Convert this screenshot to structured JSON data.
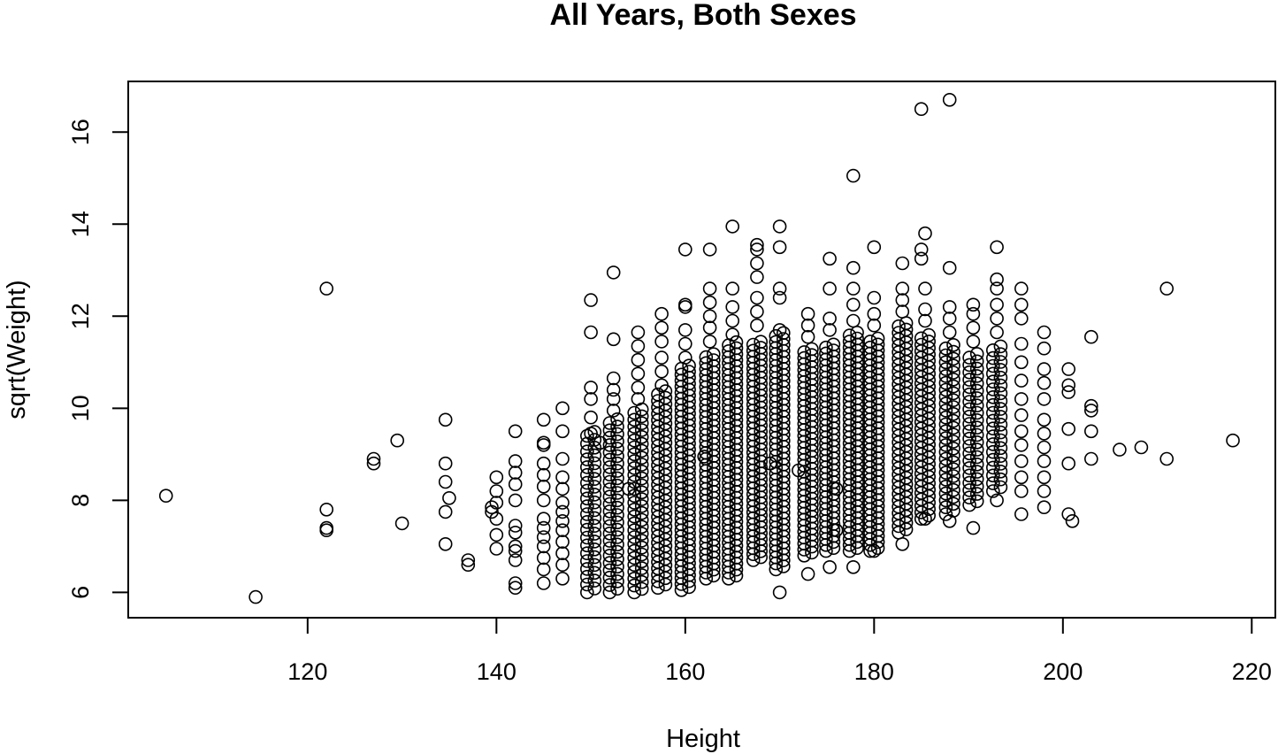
{
  "chart_data": {
    "type": "scatter",
    "title": "All Years, Both Sexes",
    "xlabel": "Height",
    "ylabel": "sqrt(Weight)",
    "xlim": [
      101,
      222.5
    ],
    "ylim": [
      5.45,
      17.1
    ],
    "xticks": [
      120,
      140,
      160,
      180,
      200,
      220
    ],
    "yticks": [
      6,
      8,
      10,
      12,
      14,
      16
    ],
    "grid": false,
    "marker": "open-circle",
    "color": "#000000",
    "points": [
      [
        105.0,
        8.1
      ],
      [
        114.5,
        5.9
      ],
      [
        122.0,
        12.6
      ],
      [
        122.0,
        7.8
      ],
      [
        122.0,
        7.4
      ],
      [
        122.0,
        7.35
      ],
      [
        127.0,
        8.9
      ],
      [
        127.0,
        8.8
      ],
      [
        129.5,
        9.3
      ],
      [
        130.0,
        7.5
      ],
      [
        134.6,
        9.75
      ],
      [
        134.6,
        8.8
      ],
      [
        134.6,
        8.4
      ],
      [
        134.6,
        7.75
      ],
      [
        134.6,
        7.05
      ],
      [
        135.0,
        8.05
      ],
      [
        137.0,
        6.7
      ],
      [
        137.0,
        6.6
      ],
      [
        139.5,
        7.85
      ],
      [
        139.5,
        7.75
      ],
      [
        140.0,
        8.5
      ],
      [
        140.0,
        8.2
      ],
      [
        140.0,
        7.95
      ],
      [
        140.0,
        7.6
      ],
      [
        140.0,
        7.25
      ],
      [
        140.0,
        6.95
      ],
      [
        142.0,
        9.5
      ],
      [
        142.0,
        8.85
      ],
      [
        142.0,
        8.6
      ],
      [
        142.0,
        8.35
      ],
      [
        142.0,
        8.0
      ],
      [
        142.0,
        7.45
      ],
      [
        142.0,
        7.3
      ],
      [
        142.0,
        7.0
      ],
      [
        142.0,
        6.9
      ],
      [
        142.0,
        6.7
      ],
      [
        142.0,
        6.2
      ],
      [
        142.0,
        6.1
      ],
      [
        145.0,
        9.75
      ],
      [
        145.0,
        9.25
      ],
      [
        145.0,
        9.2
      ],
      [
        145.0,
        8.8
      ],
      [
        145.0,
        8.55
      ],
      [
        145.0,
        8.3
      ],
      [
        145.0,
        8.0
      ],
      [
        145.0,
        7.6
      ],
      [
        145.0,
        7.4
      ],
      [
        145.0,
        7.2
      ],
      [
        145.0,
        7.0
      ],
      [
        145.0,
        6.75
      ],
      [
        145.0,
        6.5
      ],
      [
        145.0,
        6.2
      ],
      [
        147.0,
        10.0
      ],
      [
        147.0,
        9.5
      ],
      [
        147.0,
        8.9
      ],
      [
        147.0,
        8.5
      ],
      [
        147.0,
        8.25
      ],
      [
        147.0,
        7.95
      ],
      [
        147.0,
        7.75
      ],
      [
        147.0,
        7.55
      ],
      [
        147.0,
        7.35
      ],
      [
        147.0,
        7.1
      ],
      [
        147.0,
        6.85
      ],
      [
        147.0,
        6.6
      ],
      [
        147.0,
        6.3
      ],
      [
        150.0,
        12.35
      ],
      [
        150.0,
        11.65
      ],
      [
        150.0,
        10.45
      ],
      [
        150.0,
        10.2
      ],
      [
        150.0,
        9.8
      ],
      [
        150.0,
        9.45
      ],
      [
        151.0,
        9.25
      ],
      [
        154.0,
        8.25
      ],
      [
        152.4,
        12.95
      ],
      [
        152.4,
        11.5
      ],
      [
        152.4,
        10.65
      ],
      [
        152.4,
        10.4
      ],
      [
        152.4,
        10.2
      ],
      [
        152.4,
        9.95
      ],
      [
        155.0,
        11.65
      ],
      [
        155.0,
        11.35
      ],
      [
        155.0,
        11.05
      ],
      [
        155.0,
        10.75
      ],
      [
        155.0,
        10.45
      ],
      [
        155.0,
        10.2
      ],
      [
        157.5,
        12.05
      ],
      [
        157.5,
        11.75
      ],
      [
        157.5,
        11.45
      ],
      [
        157.5,
        11.1
      ],
      [
        157.5,
        10.8
      ],
      [
        157.5,
        10.5
      ],
      [
        160.0,
        13.45
      ],
      [
        160.0,
        12.25
      ],
      [
        160.0,
        12.2
      ],
      [
        160.0,
        11.7
      ],
      [
        160.0,
        11.4
      ],
      [
        160.0,
        11.1
      ],
      [
        162.0,
        8.95
      ],
      [
        162.6,
        13.45
      ],
      [
        162.6,
        12.6
      ],
      [
        162.6,
        12.3
      ],
      [
        162.6,
        12.0
      ],
      [
        162.6,
        11.75
      ],
      [
        162.6,
        11.45
      ],
      [
        165.0,
        13.95
      ],
      [
        165.0,
        12.6
      ],
      [
        165.0,
        12.2
      ],
      [
        165.0,
        11.9
      ],
      [
        165.0,
        11.6
      ],
      [
        167.6,
        13.55
      ],
      [
        167.6,
        13.45
      ],
      [
        167.6,
        13.15
      ],
      [
        167.6,
        12.85
      ],
      [
        167.6,
        12.4
      ],
      [
        167.6,
        12.1
      ],
      [
        167.6,
        11.8
      ],
      [
        170.0,
        13.95
      ],
      [
        170.0,
        13.5
      ],
      [
        170.0,
        12.6
      ],
      [
        170.0,
        12.4
      ],
      [
        170.0,
        11.7
      ],
      [
        170.0,
        6.0
      ],
      [
        169.0,
        8.8
      ],
      [
        172.0,
        8.65
      ],
      [
        173.0,
        12.05
      ],
      [
        173.0,
        11.8
      ],
      [
        173.0,
        11.55
      ],
      [
        173.0,
        6.4
      ],
      [
        175.3,
        13.25
      ],
      [
        175.3,
        12.6
      ],
      [
        175.3,
        11.95
      ],
      [
        175.3,
        11.7
      ],
      [
        175.3,
        6.55
      ],
      [
        176.0,
        8.25
      ],
      [
        176.0,
        7.35
      ],
      [
        177.8,
        15.05
      ],
      [
        177.8,
        13.05
      ],
      [
        177.8,
        12.6
      ],
      [
        177.8,
        12.25
      ],
      [
        177.8,
        11.9
      ],
      [
        177.8,
        6.55
      ],
      [
        180.0,
        13.5
      ],
      [
        180.0,
        12.4
      ],
      [
        180.0,
        12.05
      ],
      [
        180.0,
        11.8
      ],
      [
        180.0,
        6.9
      ],
      [
        183.0,
        13.15
      ],
      [
        183.0,
        12.6
      ],
      [
        183.0,
        12.35
      ],
      [
        183.0,
        12.1
      ],
      [
        183.0,
        7.05
      ],
      [
        185.0,
        16.5
      ],
      [
        185.0,
        13.45
      ],
      [
        185.0,
        13.25
      ],
      [
        185.4,
        13.8
      ],
      [
        185.4,
        12.6
      ],
      [
        185.4,
        12.15
      ],
      [
        185.4,
        11.9
      ],
      [
        185.4,
        7.6
      ],
      [
        188.0,
        16.7
      ],
      [
        188.0,
        13.05
      ],
      [
        188.0,
        12.2
      ],
      [
        188.0,
        11.95
      ],
      [
        188.0,
        11.65
      ],
      [
        188.0,
        7.55
      ],
      [
        190.5,
        12.25
      ],
      [
        190.5,
        12.05
      ],
      [
        190.5,
        11.75
      ],
      [
        190.5,
        11.45
      ],
      [
        190.5,
        7.4
      ],
      [
        193.0,
        13.5
      ],
      [
        193.0,
        12.8
      ],
      [
        193.0,
        12.6
      ],
      [
        193.0,
        12.25
      ],
      [
        193.0,
        11.95
      ],
      [
        193.0,
        11.65
      ],
      [
        193.0,
        8.0
      ],
      [
        195.6,
        12.6
      ],
      [
        195.6,
        12.25
      ],
      [
        195.6,
        11.95
      ],
      [
        195.6,
        11.4
      ],
      [
        195.6,
        11.0
      ],
      [
        195.6,
        10.6
      ],
      [
        195.6,
        10.2
      ],
      [
        195.6,
        9.85
      ],
      [
        195.6,
        9.5
      ],
      [
        195.6,
        9.2
      ],
      [
        195.6,
        8.85
      ],
      [
        195.6,
        8.5
      ],
      [
        195.6,
        8.2
      ],
      [
        195.6,
        7.7
      ],
      [
        198.0,
        11.65
      ],
      [
        198.0,
        11.3
      ],
      [
        198.0,
        10.85
      ],
      [
        198.0,
        10.55
      ],
      [
        198.0,
        10.2
      ],
      [
        198.0,
        9.75
      ],
      [
        198.0,
        9.45
      ],
      [
        198.0,
        9.15
      ],
      [
        198.0,
        8.85
      ],
      [
        198.0,
        8.5
      ],
      [
        198.0,
        8.2
      ],
      [
        198.0,
        7.85
      ],
      [
        200.6,
        10.85
      ],
      [
        200.6,
        10.5
      ],
      [
        200.6,
        10.35
      ],
      [
        200.6,
        9.55
      ],
      [
        200.6,
        8.8
      ],
      [
        200.6,
        7.7
      ],
      [
        201.0,
        7.55
      ],
      [
        203.0,
        11.55
      ],
      [
        203.0,
        10.05
      ],
      [
        203.0,
        9.95
      ],
      [
        203.0,
        9.5
      ],
      [
        203.0,
        8.9
      ],
      [
        206.0,
        9.1
      ],
      [
        208.3,
        9.15
      ],
      [
        211.0,
        12.6
      ],
      [
        211.0,
        8.9
      ],
      [
        218.0,
        9.3
      ]
    ],
    "columns": [
      {
        "x": 150.0,
        "ymin": 6.0,
        "ymax": 9.4,
        "step": 0.17
      },
      {
        "x": 152.4,
        "ymin": 6.0,
        "ymax": 9.8,
        "step": 0.16
      },
      {
        "x": 155.0,
        "ymin": 6.0,
        "ymax": 10.0,
        "step": 0.15
      },
      {
        "x": 157.5,
        "ymin": 6.1,
        "ymax": 10.3,
        "step": 0.14
      },
      {
        "x": 160.0,
        "ymin": 6.05,
        "ymax": 10.9,
        "step": 0.13
      },
      {
        "x": 162.6,
        "ymin": 6.3,
        "ymax": 11.2,
        "step": 0.13
      },
      {
        "x": 165.0,
        "ymin": 6.3,
        "ymax": 11.4,
        "step": 0.13
      },
      {
        "x": 167.6,
        "ymin": 6.7,
        "ymax": 11.5,
        "step": 0.13
      },
      {
        "x": 170.0,
        "ymin": 6.5,
        "ymax": 11.6,
        "step": 0.13
      },
      {
        "x": 173.0,
        "ymin": 6.8,
        "ymax": 11.3,
        "step": 0.13
      },
      {
        "x": 175.3,
        "ymin": 6.9,
        "ymax": 11.4,
        "step": 0.13
      },
      {
        "x": 177.8,
        "ymin": 6.9,
        "ymax": 11.6,
        "step": 0.13
      },
      {
        "x": 180.0,
        "ymin": 6.9,
        "ymax": 11.5,
        "step": 0.13
      },
      {
        "x": 183.0,
        "ymin": 7.3,
        "ymax": 11.8,
        "step": 0.14
      },
      {
        "x": 185.4,
        "ymin": 7.6,
        "ymax": 11.6,
        "step": 0.14
      },
      {
        "x": 188.0,
        "ymin": 7.7,
        "ymax": 11.3,
        "step": 0.15
      },
      {
        "x": 190.5,
        "ymin": 7.9,
        "ymax": 11.1,
        "step": 0.16
      },
      {
        "x": 193.0,
        "ymin": 8.2,
        "ymax": 11.3,
        "step": 0.17
      }
    ]
  }
}
